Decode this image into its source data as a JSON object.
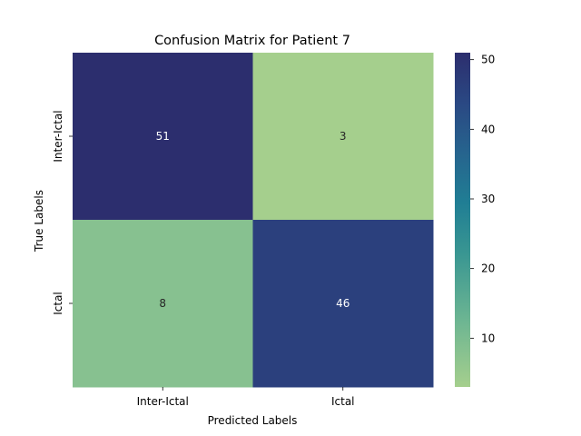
{
  "chart_data": {
    "type": "heatmap",
    "title": "Confusion Matrix for Patient 7",
    "xlabel": "Predicted Labels",
    "ylabel": "True Labels",
    "x_categories": [
      "Inter-Ictal",
      "Ictal"
    ],
    "y_categories": [
      "Inter-Ictal",
      "Ictal"
    ],
    "values": [
      [
        51,
        3
      ],
      [
        8,
        46
      ]
    ],
    "colorbar": {
      "range": [
        3,
        51
      ],
      "ticks": [
        10,
        20,
        30,
        40,
        50
      ],
      "colormap": "crest",
      "low_color": "#a5cf8d",
      "high_color": "#2c2e6e"
    },
    "grid": false,
    "legend": "colorbar-right"
  }
}
